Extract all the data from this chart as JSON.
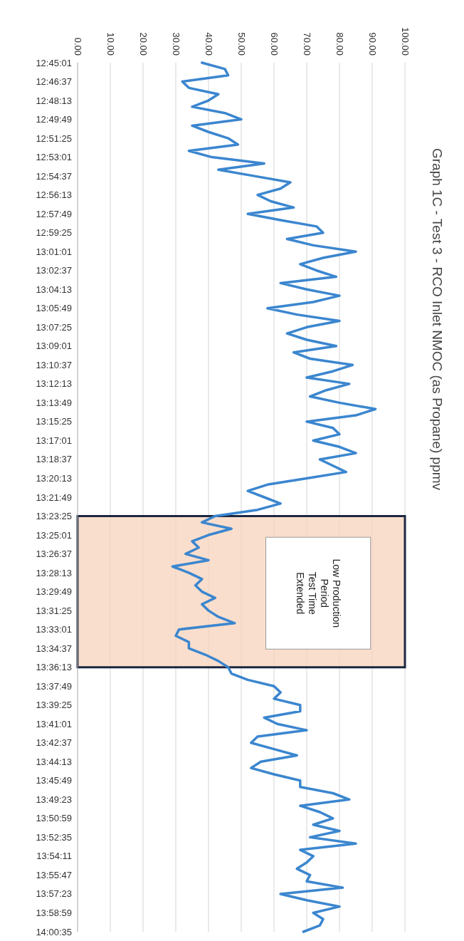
{
  "chart_data": {
    "type": "line",
    "title": "Graph 1C - Test 3 - RCO Inlet NMOC (as Propane) ppmv",
    "orientation": "horizontal",
    "categories": [
      "12:45:01",
      null,
      null,
      "12:46:37",
      null,
      null,
      "12:48:13",
      null,
      null,
      "12:49:49",
      null,
      null,
      "12:51:25",
      null,
      null,
      "12:53:01",
      null,
      null,
      "12:54:37",
      null,
      null,
      "12:56:13",
      null,
      null,
      "12:57:49",
      null,
      null,
      "12:59:25",
      null,
      null,
      "13:01:01",
      null,
      null,
      "13:02:37",
      null,
      null,
      "13:04:13",
      null,
      null,
      "13:05:49",
      null,
      null,
      "13:07:25",
      null,
      null,
      "13:09:01",
      null,
      null,
      "13:10:37",
      null,
      null,
      "13:12:13",
      null,
      null,
      "13:13:49",
      null,
      null,
      "13:15:25",
      null,
      null,
      "13:17:01",
      null,
      null,
      "13:18:37",
      null,
      null,
      "13:20:13",
      null,
      null,
      "13:21:49",
      null,
      null,
      "13:23:25",
      null,
      null,
      "13:25:01",
      null,
      null,
      "13:26:37",
      null,
      null,
      "13:28:13",
      null,
      null,
      "13:29:49",
      null,
      null,
      "13:31:25",
      null,
      null,
      "13:33:01",
      null,
      null,
      "13:34:37",
      null,
      null,
      "13:36:13",
      null,
      null,
      "13:37:49",
      null,
      null,
      "13:39:25",
      null,
      null,
      "13:41:01",
      null,
      null,
      "13:42:37",
      null,
      null,
      "13:44:13",
      null,
      null,
      "13:45:49",
      null,
      null,
      "13:49:23",
      null,
      null,
      "13:50:59",
      null,
      null,
      "13:52:35",
      null,
      null,
      "13:54:11",
      null,
      null,
      "13:55:47",
      null,
      null,
      "13:57:23",
      null,
      null,
      "13:58:59",
      null,
      null,
      "14:00:35"
    ],
    "values": [
      38,
      45,
      46,
      32,
      34,
      43,
      40,
      35,
      45,
      50,
      35,
      40,
      46,
      49,
      34,
      41,
      57,
      43,
      54,
      65,
      62,
      55,
      59,
      66,
      52,
      62,
      73,
      75,
      64,
      72,
      85,
      75,
      68,
      73,
      79,
      62,
      70,
      80,
      72,
      58,
      67,
      80,
      70,
      64,
      70,
      79,
      66,
      71,
      84,
      78,
      70,
      83,
      76,
      71,
      80,
      91,
      85,
      70,
      78,
      80,
      72,
      80,
      85,
      74,
      78,
      82,
      70,
      58,
      52,
      57,
      62,
      55,
      42,
      38,
      47,
      40,
      35,
      37,
      33,
      40,
      29,
      34,
      38,
      36,
      38,
      42,
      38,
      40,
      43,
      48,
      31,
      30,
      34,
      34,
      39,
      43,
      46,
      47,
      52,
      60,
      62,
      60,
      68,
      68,
      57,
      61,
      70,
      55,
      53,
      60,
      67,
      56,
      53,
      60,
      68,
      68,
      78,
      83,
      68,
      74,
      78,
      72,
      80,
      71,
      85,
      68,
      72,
      70,
      67,
      71,
      70,
      81,
      62,
      70,
      80,
      72,
      75,
      74,
      69
    ],
    "color": "#3b86cf",
    "xlim": [
      0,
      100
    ],
    "xticks": [
      {
        "value": 0,
        "label": "0.00"
      },
      {
        "value": 10,
        "label": "10.00"
      },
      {
        "value": 20,
        "label": "20.00"
      },
      {
        "value": 30,
        "label": "30.00"
      },
      {
        "value": 40,
        "label": "40.00"
      },
      {
        "value": 50,
        "label": "50.00"
      },
      {
        "value": 60,
        "label": "60.00"
      },
      {
        "value": 70,
        "label": "70.00"
      },
      {
        "value": 80,
        "label": "80.00"
      },
      {
        "value": 90,
        "label": "90.00"
      },
      {
        "value": 100,
        "label": "100.00"
      }
    ],
    "grid": "x",
    "bands": [
      {
        "axis": "y",
        "from": "13:23:25",
        "to": "13:36:13",
        "label": "Low Production\nPeriod\nTest Time\nExtended",
        "color": "#f8d3bc"
      }
    ]
  }
}
